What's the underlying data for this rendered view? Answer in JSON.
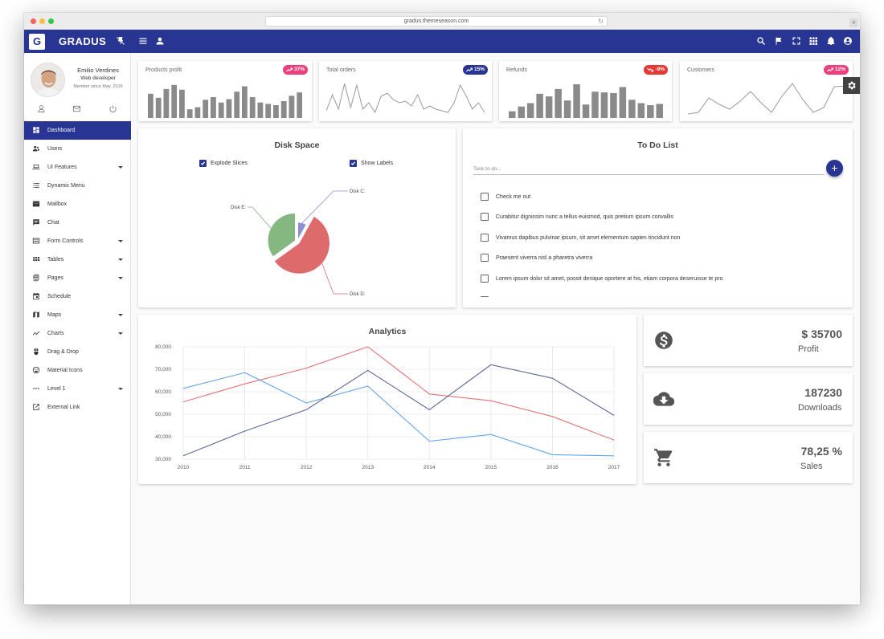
{
  "browser": {
    "url": "gradus.themeseason.com"
  },
  "topbar": {
    "logo_letter": "G",
    "brand": "GRADUS"
  },
  "user": {
    "name": "Emilio Verdines",
    "role": "Web developer",
    "since": "Member since May. 2016"
  },
  "sidebar": {
    "items": [
      {
        "label": "Dashboard",
        "icon": "dashboard-icon",
        "active": true,
        "has_caret": false
      },
      {
        "label": "Users",
        "icon": "users-icon",
        "active": false,
        "has_caret": false
      },
      {
        "label": "UI Features",
        "icon": "laptop-icon",
        "active": false,
        "has_caret": true
      },
      {
        "label": "Dynamic Menu",
        "icon": "list-icon",
        "active": false,
        "has_caret": false
      },
      {
        "label": "Mailbox",
        "icon": "mail-icon",
        "active": false,
        "has_caret": false
      },
      {
        "label": "Chat",
        "icon": "chat-icon",
        "active": false,
        "has_caret": false
      },
      {
        "label": "Form Controls",
        "icon": "form-icon",
        "active": false,
        "has_caret": true
      },
      {
        "label": "Tables",
        "icon": "tables-icon",
        "active": false,
        "has_caret": true
      },
      {
        "label": "Pages",
        "icon": "pages-icon",
        "active": false,
        "has_caret": true
      },
      {
        "label": "Schedule",
        "icon": "calendar-icon",
        "active": false,
        "has_caret": false
      },
      {
        "label": "Maps",
        "icon": "map-icon",
        "active": false,
        "has_caret": true
      },
      {
        "label": "Charts",
        "icon": "charts-icon",
        "active": false,
        "has_caret": true
      },
      {
        "label": "Drag & Drop",
        "icon": "mouse-icon",
        "active": false,
        "has_caret": false
      },
      {
        "label": "Material Icons",
        "icon": "smiley-icon",
        "active": false,
        "has_caret": false
      },
      {
        "label": "Level 1",
        "icon": "more-icon",
        "active": false,
        "has_caret": true
      },
      {
        "label": "External Link",
        "icon": "external-link-icon",
        "active": false,
        "has_caret": false
      }
    ]
  },
  "stats": [
    {
      "title": "Products profit",
      "badge": "37%",
      "trend": "up",
      "badge_color": "#ec407a"
    },
    {
      "title": "Total orders",
      "badge": "15%",
      "trend": "up",
      "badge_color": "#283593"
    },
    {
      "title": "Refunds",
      "badge": "-9%",
      "trend": "down",
      "badge_color": "#e53935"
    },
    {
      "title": "Customers",
      "badge": "12%",
      "trend": "up",
      "badge_color": "#ec407a"
    }
  ],
  "sparklines": {
    "products_profit": {
      "type": "bar",
      "values": [
        0.72,
        0.6,
        0.86,
        0.98,
        0.84,
        0.26,
        0.32,
        0.54,
        0.62,
        0.46,
        0.56,
        0.78,
        0.94,
        0.62,
        0.46,
        0.42,
        0.38,
        0.5,
        0.66,
        0.76
      ]
    },
    "total_orders": {
      "type": "line",
      "values": [
        0.15,
        0.65,
        0.2,
        1.0,
        0.25,
        0.95,
        0.2,
        0.4,
        0.1,
        0.6,
        0.7,
        0.5,
        0.4,
        0.45,
        0.3,
        0.65,
        0.2,
        0.3,
        0.2,
        0.15,
        0.1,
        0.4,
        0.95,
        0.6,
        0.2,
        0.4,
        0.1
      ]
    },
    "refunds": {
      "type": "bar",
      "values": [
        0.2,
        0.34,
        0.44,
        0.72,
        0.64,
        0.86,
        0.52,
        1.0,
        0.4,
        0.78,
        0.76,
        0.74,
        0.92,
        0.54,
        0.44,
        0.38,
        0.42
      ]
    },
    "customers": {
      "type": "line",
      "values": [
        0.05,
        0.1,
        0.55,
        0.35,
        0.2,
        0.45,
        0.75,
        0.4,
        0.1,
        0.6,
        1.0,
        0.5,
        0.1,
        0.25,
        0.9,
        0.92
      ]
    }
  },
  "disk_space": {
    "title": "Disk Space",
    "options": [
      {
        "label": "Explode Slices",
        "checked": true
      },
      {
        "label": "Show Labels",
        "checked": true
      }
    ],
    "chart_data": {
      "type": "pie",
      "slices": [
        {
          "label": "Disk C:",
          "value": 8,
          "color": "#8a8fd6"
        },
        {
          "label": "Disk D:",
          "value": 57,
          "color": "#de6b6b"
        },
        {
          "label": "Disk E:",
          "value": 35,
          "color": "#84b880"
        }
      ]
    }
  },
  "todo": {
    "title": "To Do List",
    "placeholder": "Task to do...",
    "add_label": "+",
    "items": [
      "Check me out",
      "Curabitur dignissim nunc a tellus euismod, quis pretium ipsum convallis",
      "Vivamus dapibus pulvinar ipsum, sit amet elementum sapien tincidunt non",
      "Praesent viverra nisl a pharetra viverra",
      "Lorem ipsum dolor sit amet, possit denique oportere at his, etiam corpora deseruisse te pro"
    ]
  },
  "analytics": {
    "title": "Analytics",
    "chart_data": {
      "type": "line",
      "x": [
        2010,
        2011,
        2012,
        2013,
        2014,
        2015,
        2016,
        2017
      ],
      "ylim": [
        30000,
        80000
      ],
      "yticks": [
        "30,000",
        "40,000",
        "50,000",
        "60,000",
        "70,000",
        "80,000"
      ],
      "xticks": [
        "2010",
        "2011",
        "2012",
        "2013",
        "2014",
        "2015",
        "2016",
        "2017"
      ],
      "grid": true,
      "series": [
        {
          "color": "#e57373",
          "values": [
            55500,
            63500,
            70500,
            80000,
            59000,
            56000,
            49000,
            38500
          ]
        },
        {
          "color": "#64a5e8",
          "values": [
            61500,
            68500,
            55000,
            62500,
            38000,
            41000,
            32000,
            31500
          ]
        },
        {
          "color": "#5c6796",
          "values": [
            31500,
            42500,
            52000,
            69500,
            52000,
            72000,
            66000,
            49500
          ]
        }
      ]
    }
  },
  "info_cards": [
    {
      "value": "$ 35700",
      "label": "Profit",
      "icon": "dollar-icon"
    },
    {
      "value": "187230",
      "label": "Downloads",
      "icon": "cloud-download-icon"
    },
    {
      "value": "78,25 %",
      "label": "Sales",
      "icon": "cart-icon"
    }
  ]
}
